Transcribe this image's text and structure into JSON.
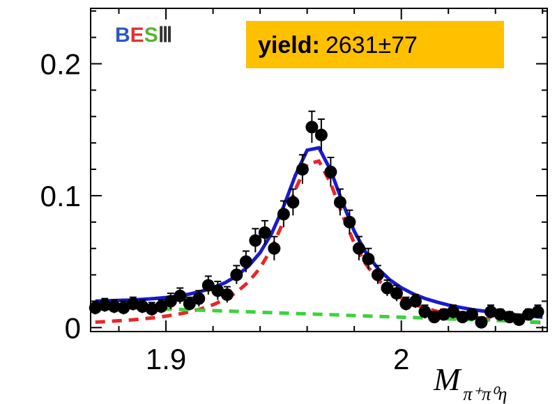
{
  "chart_data": {
    "type": "scatter",
    "logo": [
      "B",
      "E",
      "S",
      "Ⅲ"
    ],
    "annotation": {
      "label": "yield:",
      "value": "2631±77"
    },
    "xlabel": {
      "text": "M",
      "subscript": "π⁺π⁰η"
    },
    "x": [
      1.87,
      1.874,
      1.878,
      1.882,
      1.886,
      1.89,
      1.894,
      1.898,
      1.902,
      1.906,
      1.91,
      1.914,
      1.918,
      1.922,
      1.926,
      1.93,
      1.934,
      1.938,
      1.942,
      1.946,
      1.95,
      1.954,
      1.958,
      1.962,
      1.966,
      1.97,
      1.974,
      1.978,
      1.982,
      1.986,
      1.99,
      1.994,
      1.998,
      2.002,
      2.006,
      2.01,
      2.014,
      2.018,
      2.022,
      2.026,
      2.03,
      2.034,
      2.038,
      2.042,
      2.046,
      2.05,
      2.054,
      2.058
    ],
    "values": [
      0.015,
      0.017,
      0.016,
      0.015,
      0.018,
      0.016,
      0.014,
      0.016,
      0.02,
      0.024,
      0.018,
      0.022,
      0.032,
      0.028,
      0.025,
      0.04,
      0.05,
      0.066,
      0.072,
      0.06,
      0.086,
      0.095,
      0.12,
      0.152,
      0.146,
      0.118,
      0.095,
      0.08,
      0.06,
      0.052,
      0.04,
      0.03,
      0.026,
      0.018,
      0.02,
      0.012,
      0.008,
      0.01,
      0.012,
      0.008,
      0.01,
      0.004,
      0.012,
      0.01,
      0.008,
      0.006,
      0.01,
      0.012
    ],
    "errors": [
      0.005,
      0.005,
      0.005,
      0.005,
      0.005,
      0.005,
      0.005,
      0.005,
      0.006,
      0.006,
      0.005,
      0.006,
      0.007,
      0.007,
      0.006,
      0.007,
      0.008,
      0.009,
      0.009,
      0.009,
      0.01,
      0.01,
      0.011,
      0.012,
      0.012,
      0.011,
      0.01,
      0.009,
      0.009,
      0.008,
      0.007,
      0.006,
      0.006,
      0.005,
      0.005,
      0.005,
      0.004,
      0.004,
      0.005,
      0.004,
      0.004,
      0.004,
      0.005,
      0.004,
      0.004,
      0.004,
      0.004,
      0.005
    ],
    "point_color": "#000000",
    "fits": [
      {
        "color": "#e8262a",
        "dashed": true,
        "x": [
          1.87,
          1.875,
          1.88,
          1.885,
          1.89,
          1.895,
          1.9,
          1.905,
          1.91,
          1.915,
          1.92,
          1.925,
          1.93,
          1.935,
          1.94,
          1.945,
          1.95,
          1.955,
          1.96,
          1.965,
          1.97,
          1.975,
          1.98,
          1.985,
          1.99,
          1.995,
          2.0,
          2.005,
          2.01,
          2.015,
          2.02,
          2.025,
          2.03,
          2.035,
          2.04,
          2.045,
          2.05,
          2.055,
          2.06
        ],
        "values": [
          0.0041,
          0.0046,
          0.0052,
          0.0058,
          0.0066,
          0.0075,
          0.0087,
          0.0101,
          0.0119,
          0.0143,
          0.0173,
          0.0213,
          0.0268,
          0.0345,
          0.0452,
          0.0604,
          0.0808,
          0.1048,
          0.1241,
          0.1262,
          0.1094,
          0.0854,
          0.064,
          0.0479,
          0.0364,
          0.0282,
          0.0223,
          0.018,
          0.0148,
          0.0124,
          0.0105,
          0.009,
          0.0077,
          0.0068,
          0.006,
          0.0053,
          0.0047,
          0.0042,
          0.0038
        ]
      },
      {
        "color": "#3cd23c",
        "dashed": true,
        "x": [
          1.87,
          1.875,
          1.88,
          1.885,
          1.89,
          1.895,
          1.9,
          1.905,
          1.91,
          1.915,
          1.92,
          1.925,
          1.93,
          1.935,
          1.94,
          1.945,
          1.95,
          1.955,
          1.96,
          1.965,
          1.97,
          1.975,
          1.98,
          1.985,
          1.99,
          1.995,
          2.0,
          2.005,
          2.01,
          2.015,
          2.02,
          2.025,
          2.03,
          2.035,
          2.04,
          2.045,
          2.05,
          2.055,
          2.06
        ],
        "values": [
          0.016,
          0.0157,
          0.0154,
          0.0151,
          0.0148,
          0.0145,
          0.0141,
          0.0138,
          0.0135,
          0.0132,
          0.0129,
          0.0126,
          0.0123,
          0.012,
          0.0116,
          0.0113,
          0.011,
          0.0107,
          0.0104,
          0.0101,
          0.0098,
          0.0095,
          0.0091,
          0.0088,
          0.0085,
          0.0082,
          0.0079,
          0.0076,
          0.0073,
          0.007,
          0.0066,
          0.0063,
          0.006,
          0.0057,
          0.0054,
          0.0051,
          0.0048,
          0.0045,
          0.0041
        ]
      },
      {
        "color": "#1a1acc",
        "dashed": false,
        "x": [
          1.87,
          1.875,
          1.88,
          1.885,
          1.89,
          1.895,
          1.9,
          1.905,
          1.91,
          1.915,
          1.92,
          1.925,
          1.93,
          1.935,
          1.94,
          1.945,
          1.95,
          1.955,
          1.96,
          1.965,
          1.97,
          1.975,
          1.98,
          1.985,
          1.99,
          1.995,
          2.0,
          2.005,
          2.01,
          2.015,
          2.02,
          2.025,
          2.03,
          2.035,
          2.04,
          2.045,
          2.05,
          2.055,
          2.06
        ],
        "values": [
          0.0201,
          0.0203,
          0.0206,
          0.0209,
          0.0214,
          0.022,
          0.0228,
          0.0239,
          0.0254,
          0.0275,
          0.0302,
          0.0339,
          0.0391,
          0.0465,
          0.0568,
          0.0717,
          0.0918,
          0.1155,
          0.1345,
          0.1363,
          0.1192,
          0.0949,
          0.0731,
          0.0567,
          0.0449,
          0.0364,
          0.0302,
          0.0256,
          0.0221,
          0.0194,
          0.0171,
          0.0153,
          0.0137,
          0.0125,
          0.0114,
          0.0104,
          0.0095,
          0.0087,
          0.0079
        ]
      }
    ],
    "xlim": [
      1.868,
      2.062
    ],
    "ylim": [
      -0.003,
      0.242
    ],
    "xticks": [
      1.9,
      2
    ],
    "yticks": [
      0,
      0.1,
      0.2
    ],
    "xminorticks": [
      1.88,
      1.92,
      1.94,
      1.96,
      1.98,
      2.02,
      2.04,
      2.06
    ],
    "yminorticks": [
      0.02,
      0.04,
      0.06,
      0.08,
      0.12,
      0.14,
      0.16,
      0.18,
      0.22,
      0.24
    ]
  }
}
